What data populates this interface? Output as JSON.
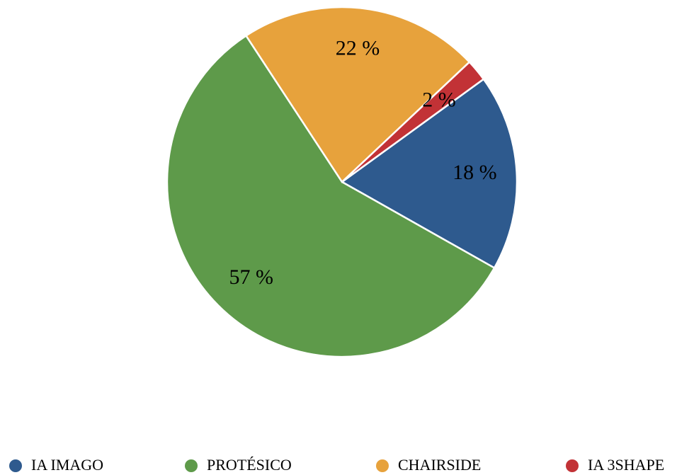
{
  "chart_data": {
    "type": "pie",
    "categories": [
      "IA IMAGO",
      "PROTÉSICO",
      "CHAIRSIDE",
      "IA 3SHAPE"
    ],
    "values": [
      18,
      57,
      22,
      2
    ],
    "value_labels": [
      "18 %",
      "57 %",
      "22 %",
      "2 %"
    ],
    "colors": [
      "#2e5a8e",
      "#5e9a4a",
      "#e7a23c",
      "#c23236"
    ],
    "legend": "bottom"
  }
}
